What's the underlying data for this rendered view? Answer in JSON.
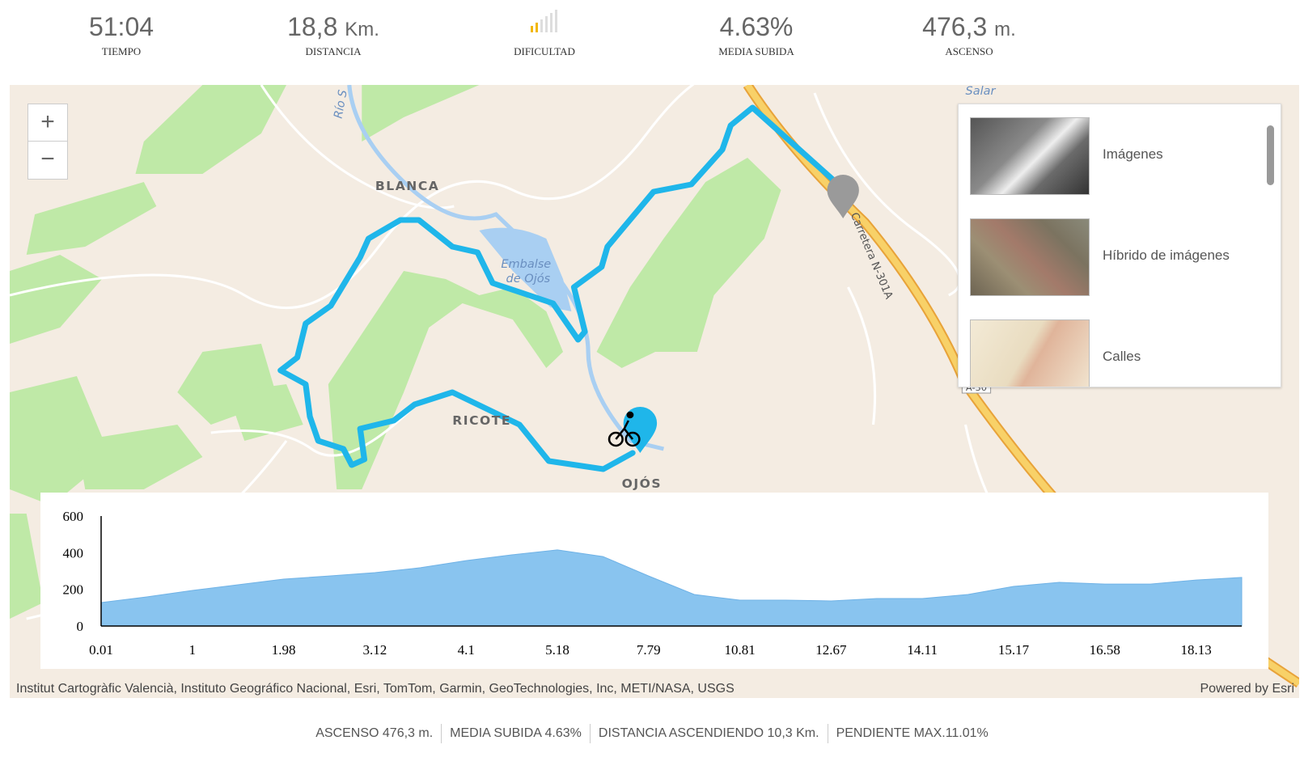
{
  "stats": [
    {
      "value": "51:04",
      "label": "TIEMPO"
    },
    {
      "value": "18,8",
      "unit": "Km.",
      "label": "DISTANCIA"
    },
    {
      "label": "DIFICULTAD"
    },
    {
      "value": "4.63%",
      "label": "MEDIA SUBIDA"
    },
    {
      "value": "476,3",
      "unit": "m.",
      "label": "ASCENSO"
    }
  ],
  "map": {
    "zoom": {
      "in": "+",
      "out": "−"
    },
    "labels": {
      "blanca": "BLANCA",
      "embalse_1": "Embalse",
      "embalse_2": "de Ojós",
      "ricote": "RICOTE",
      "ojos": "OJÓS",
      "salar": "Salar",
      "carretera": "Carretera N-301A",
      "a30": "A-30",
      "rio": "Río S"
    },
    "layers": [
      "Imágenes",
      "Híbrido de imágenes",
      "Calles"
    ],
    "attribution": "Institut Cartogràfic Valencià, Instituto Geográfico Nacional, Esri, TomTom, Garmin, GeoTechnologies, Inc, METI/NASA, USGS",
    "powered": "Powered by Esri"
  },
  "chart_data": {
    "type": "area",
    "color": "#89c4ef",
    "categories": [
      "0.01",
      null,
      "1",
      null,
      "1.98",
      null,
      "3.12",
      null,
      "4.1",
      null,
      "5.18",
      null,
      "7.79",
      null,
      "10.81",
      null,
      "12.67",
      null,
      "14.11",
      null,
      "15.17",
      null,
      "16.58",
      null,
      "18.13",
      null
    ],
    "values": [
      128,
      159,
      194,
      225,
      256,
      273,
      291,
      318,
      357,
      388,
      415,
      379,
      273,
      172,
      141,
      141,
      137,
      150,
      150,
      172,
      216,
      238,
      229,
      229,
      251,
      265
    ],
    "ylim": [
      0,
      600
    ],
    "yticks": [
      0,
      200,
      400,
      600
    ]
  },
  "footer": [
    "ASCENSO 476,3 m.",
    "MEDIA SUBIDA 4.63%",
    "DISTANCIA ASCENDIENDO 10,3 Km.",
    "PENDIENTE MAX.11.01%"
  ]
}
